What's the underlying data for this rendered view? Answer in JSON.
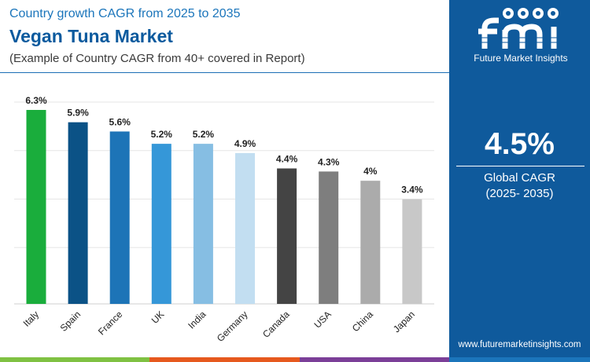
{
  "header": {
    "overline": "Country growth CAGR from 2025 to 2035",
    "title": "Vegan Tuna Market",
    "subtitle": "(Example of Country CAGR from 40+ covered in Report)"
  },
  "side_panel": {
    "brand_logo_text": "fmi",
    "brand_name": "Future Market Insights",
    "cagr_value": "4.5%",
    "cagr_label_line1": "Global CAGR",
    "cagr_label_line2": "(2025- 2035)",
    "website": "www.futuremarketinsights.com",
    "background_color": "#0f5a9c"
  },
  "bottom_bar_colors": [
    "#7fc142",
    "#e6591e",
    "#7b3f98",
    "#1b75bb"
  ],
  "chart_data": {
    "type": "bar",
    "categories": [
      "Italy",
      "Spain",
      "France",
      "UK",
      "India",
      "Germany",
      "Canada",
      "USA",
      "China",
      "Japan"
    ],
    "values": [
      6.3,
      5.9,
      5.6,
      5.2,
      5.2,
      4.9,
      4.4,
      4.3,
      4.0,
      3.4
    ],
    "value_labels": [
      "6.3%",
      "5.9%",
      "5.6%",
      "5.2%",
      "5.2%",
      "4.9%",
      "4.4%",
      "4.3%",
      "4%",
      "3.4%"
    ],
    "bar_colors": [
      "#1aad3c",
      "#0b5286",
      "#1d74b7",
      "#3597d8",
      "#86bee3",
      "#c2def1",
      "#444444",
      "#7e7e7e",
      "#ababab",
      "#c8c8c8"
    ],
    "ylim": [
      0,
      6.3
    ],
    "title": "",
    "xlabel": "",
    "ylabel": "",
    "grid": true,
    "legend": "none"
  }
}
